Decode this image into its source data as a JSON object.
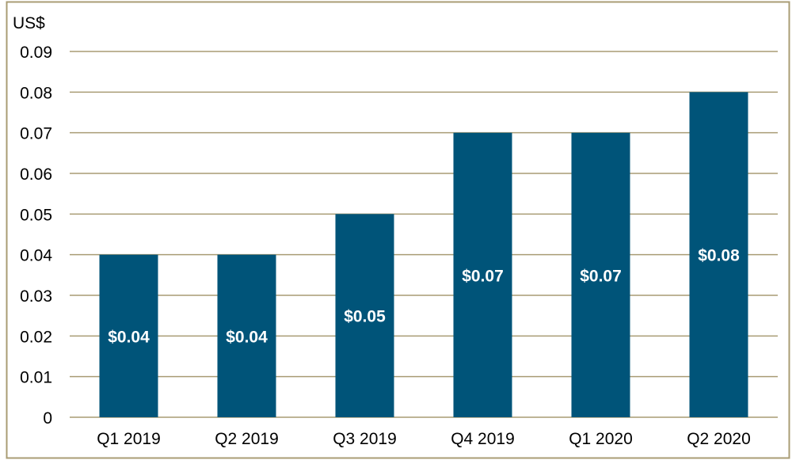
{
  "chart_data": {
    "type": "bar",
    "title": "",
    "ylabel": "US$",
    "xlabel": "",
    "categories": [
      "Q1 2019",
      "Q2 2019",
      "Q3 2019",
      "Q4 2019",
      "Q1 2020",
      "Q2 2020"
    ],
    "values": [
      0.04,
      0.04,
      0.05,
      0.07,
      0.07,
      0.08
    ],
    "data_labels": [
      "$0.04",
      "$0.04",
      "$0.05",
      "$0.07",
      "$0.07",
      "$0.08"
    ],
    "ylim": [
      0,
      0.09
    ],
    "yticks": [
      "0",
      "0.01",
      "0.02",
      "0.03",
      "0.04",
      "0.05",
      "0.06",
      "0.07",
      "0.08",
      "0.09"
    ],
    "grid": true,
    "colors": {
      "bar": "#005479",
      "grid": "#a99c74",
      "border": "#a99c74"
    }
  }
}
